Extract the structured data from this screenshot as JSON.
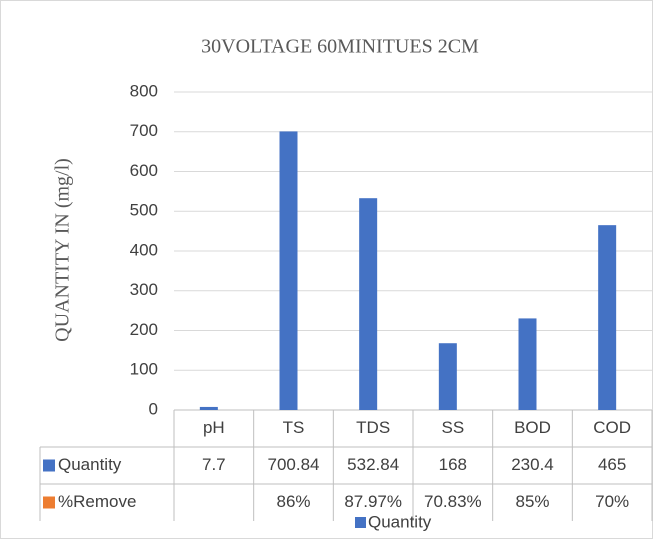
{
  "chart_data": {
    "type": "bar",
    "title": "30VOLTAGE 60MINITUES 2CM",
    "y_label": "QUANTITY IN  (mg/l)",
    "categories": [
      "pH",
      "TS",
      "TDS",
      "SS",
      "BOD",
      "COD"
    ],
    "series": [
      {
        "name": "Quantity",
        "color": "#4472c4",
        "values": [
          7.7,
          700.84,
          532.84,
          168,
          230.4,
          465
        ]
      },
      {
        "name": "%Remove",
        "color": "#ed7d31",
        "values": [
          null,
          86,
          87.97,
          70.83,
          85,
          70
        ],
        "value_labels": [
          null,
          "86%",
          "87.97%",
          "70.83%",
          "85%",
          "70%"
        ]
      }
    ],
    "legend_series": [
      0
    ],
    "ylim": [
      0,
      800
    ],
    "yticks": [
      0,
      100,
      200,
      300,
      400,
      500,
      600,
      700,
      800
    ],
    "grid": true
  }
}
